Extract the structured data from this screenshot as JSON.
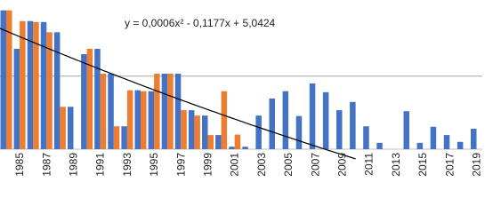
{
  "chart_data": {
    "type": "bar",
    "categories": [
      null,
      "1985",
      null,
      "1987",
      null,
      "1989",
      null,
      "1991",
      null,
      "1993",
      null,
      "1995",
      null,
      "1997",
      null,
      "1999",
      null,
      "2001",
      null,
      "2003",
      null,
      "2005",
      null,
      "2007",
      null,
      "2009",
      null,
      "2011",
      null,
      "2013",
      null,
      "2015",
      null,
      "2017",
      null,
      "2019"
    ],
    "series": [
      {
        "color": "#4472c4",
        "values": [
          5.35,
          4.56,
          5.13,
          5.11,
          4.9,
          3.37,
          4.45,
          4.56,
          4.05,
          2.97,
          3.71,
          3.69,
          4.05,
          4.05,
          3.3,
          3.19,
          2.79,
          2.55,
          2.55,
          3.19,
          3.54,
          3.69,
          3.18,
          3.85,
          3.67,
          3.3,
          3.47,
          2.97,
          2.63,
          null,
          3.28,
          2.63,
          2.96,
          2.79,
          2.65,
          2.92
        ]
      },
      {
        "color": "#ed7d31",
        "values": [
          5.35,
          5.13,
          5.11,
          4.9,
          3.37,
          null,
          4.56,
          4.05,
          2.97,
          3.71,
          3.69,
          4.05,
          4.05,
          3.3,
          3.19,
          2.79,
          3.69,
          2.8,
          null,
          null,
          null,
          null,
          null,
          null,
          null,
          null,
          null,
          null,
          null,
          null,
          null,
          null,
          null,
          null,
          null,
          null
        ]
      }
    ],
    "trendline": {
      "label": "y = 0,0006x² - 0,1177x + 5,0424",
      "coefficients": [
        0.0006,
        -0.1177,
        5.0424
      ],
      "color": "#000000"
    },
    "ylim": [
      2.5,
      5.38
    ],
    "yticks": [
      4
    ],
    "grid": true
  }
}
